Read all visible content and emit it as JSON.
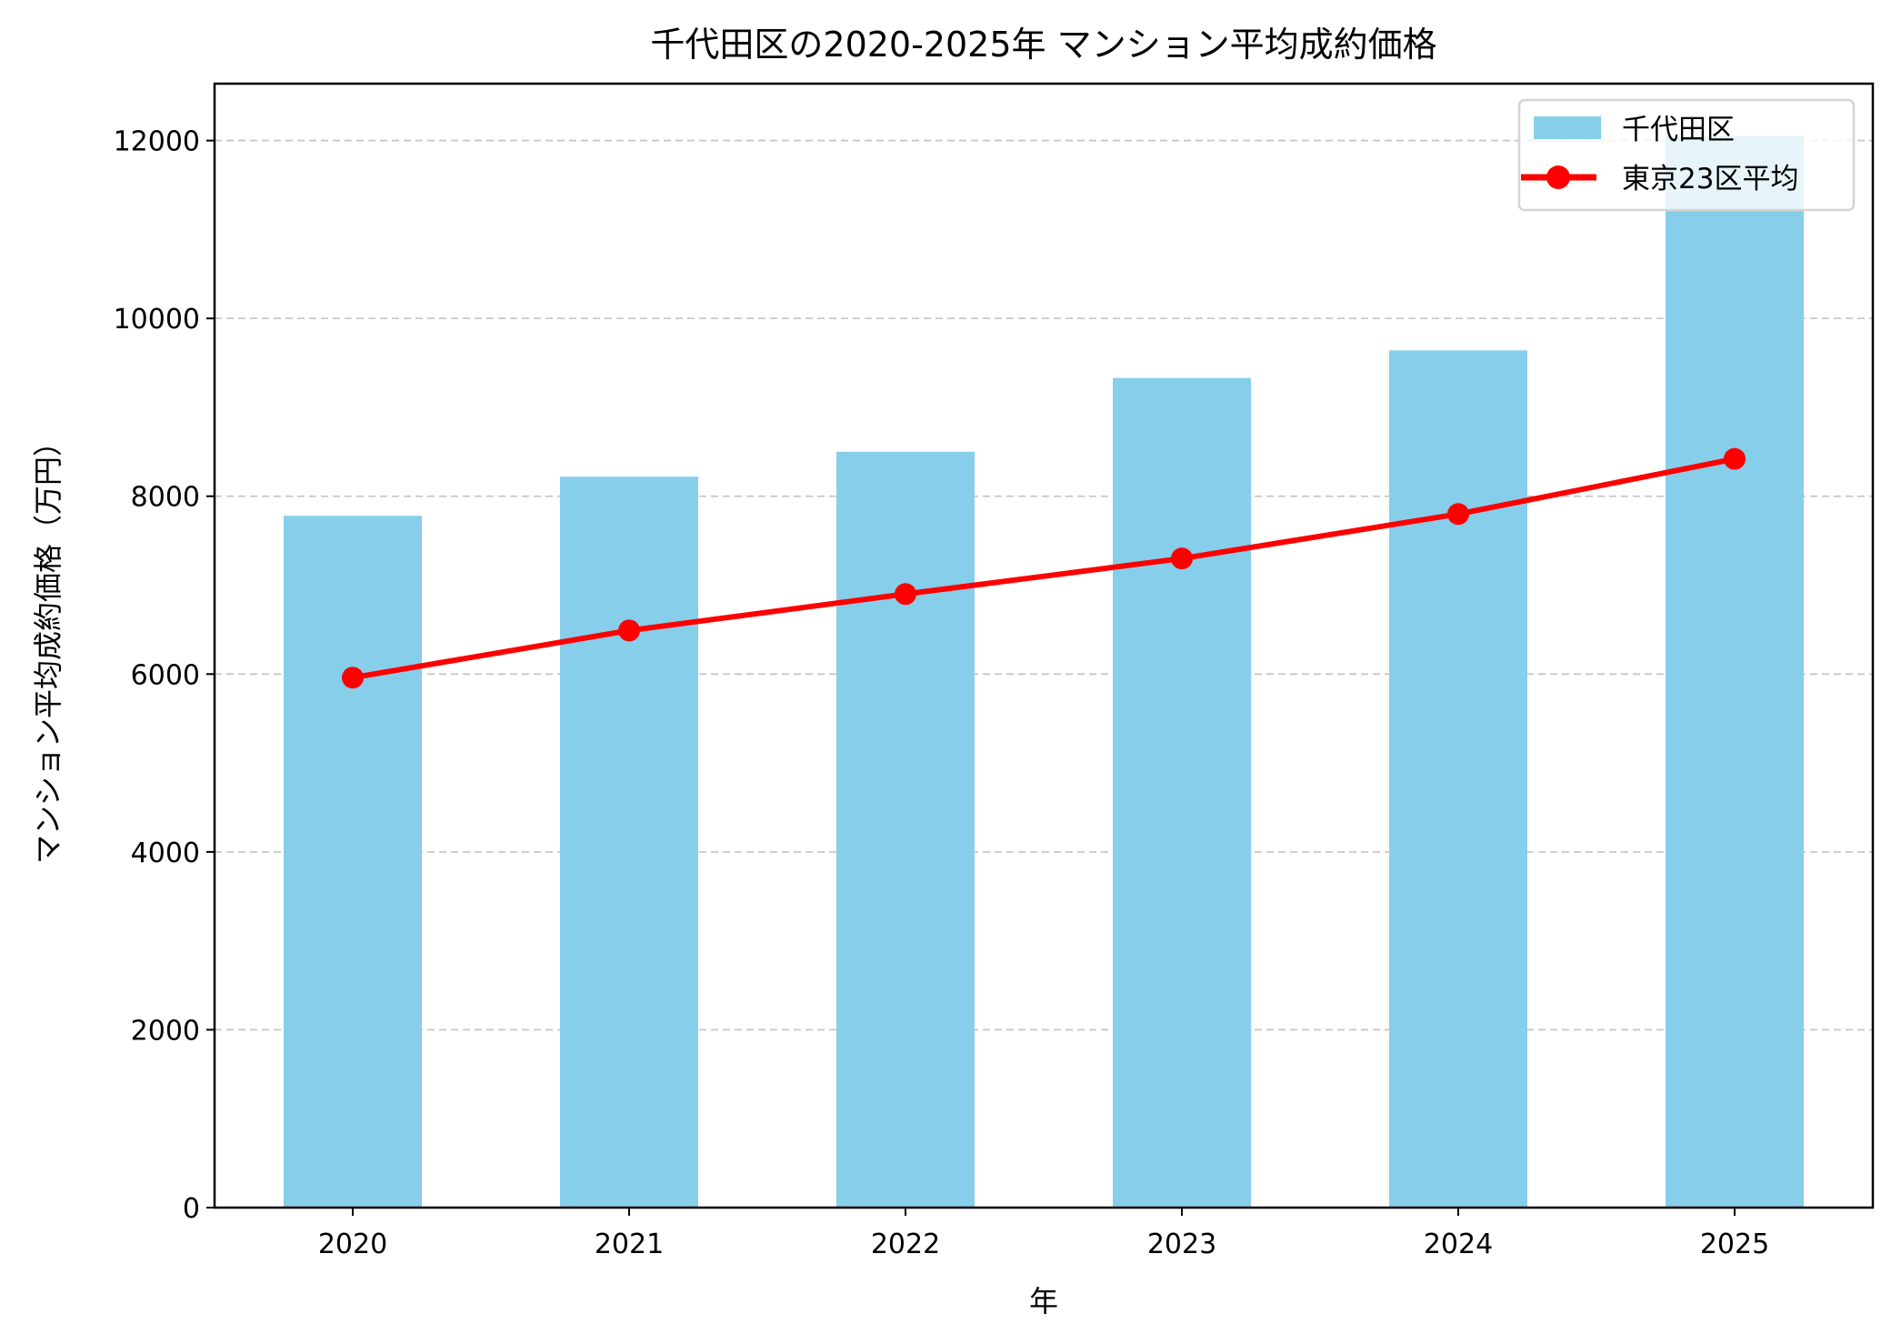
{
  "chart_data": {
    "type": "bar",
    "title": "千代田区の2020-2025年 マンション平均成約価格",
    "xlabel": "年",
    "ylabel": "マンション平均成約価格（万円）",
    "categories": [
      "2020",
      "2021",
      "2022",
      "2023",
      "2024",
      "2025"
    ],
    "ylim": [
      0,
      12640
    ],
    "yticks": [
      0,
      2000,
      4000,
      6000,
      8000,
      10000,
      12000
    ],
    "grid": "y-dashed",
    "legend_position": "top-right",
    "series": [
      {
        "name": "千代田区",
        "kind": "bar",
        "color": "#87CEEB",
        "values": [
          7780,
          8220,
          8500,
          9330,
          9640,
          12050
        ]
      },
      {
        "name": "東京23区平均",
        "kind": "line",
        "marker": "circle",
        "color": "#FF0000",
        "values": [
          5960,
          6490,
          6900,
          7300,
          7800,
          8420
        ]
      }
    ]
  }
}
